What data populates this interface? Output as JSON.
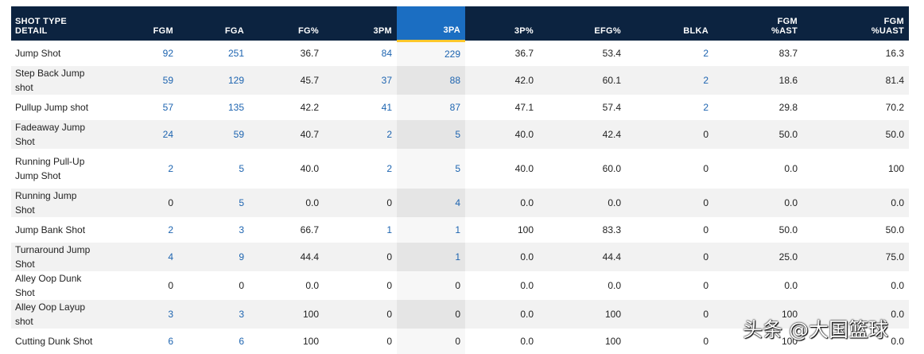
{
  "table": {
    "headers": [
      {
        "label": "SHOT TYPE DETAIL",
        "line2": ""
      },
      {
        "label": "FGM",
        "line2": ""
      },
      {
        "label": "FGA",
        "line2": ""
      },
      {
        "label": "FG%",
        "line2": ""
      },
      {
        "label": "3PM",
        "line2": ""
      },
      {
        "label": "3PA",
        "line2": ""
      },
      {
        "label": "3P%",
        "line2": ""
      },
      {
        "label": "EFG%",
        "line2": ""
      },
      {
        "label": "BLKA",
        "line2": ""
      },
      {
        "label": "FGM",
        "line2": "%AST"
      },
      {
        "label": "FGM",
        "line2": "%UAST"
      }
    ],
    "sorted_column": "3PA",
    "rows": [
      {
        "type": "Jump Shot",
        "fgm": "92",
        "fga": "251",
        "fg_pct": "36.7",
        "tpm": "84",
        "tpa": "229",
        "tp_pct": "36.7",
        "efg_pct": "53.4",
        "blka": "2",
        "fgm_ast": "83.7",
        "fgm_uast": "16.3"
      },
      {
        "type": "Step Back Jump shot",
        "fgm": "59",
        "fga": "129",
        "fg_pct": "45.7",
        "tpm": "37",
        "tpa": "88",
        "tp_pct": "42.0",
        "efg_pct": "60.1",
        "blka": "2",
        "fgm_ast": "18.6",
        "fgm_uast": "81.4"
      },
      {
        "type": "Pullup Jump shot",
        "fgm": "57",
        "fga": "135",
        "fg_pct": "42.2",
        "tpm": "41",
        "tpa": "87",
        "tp_pct": "47.1",
        "efg_pct": "57.4",
        "blka": "2",
        "fgm_ast": "29.8",
        "fgm_uast": "70.2"
      },
      {
        "type": "Fadeaway Jump Shot",
        "fgm": "24",
        "fga": "59",
        "fg_pct": "40.7",
        "tpm": "2",
        "tpa": "5",
        "tp_pct": "40.0",
        "efg_pct": "42.4",
        "blka": "0",
        "fgm_ast": "50.0",
        "fgm_uast": "50.0"
      },
      {
        "type": "Running Pull-Up Jump Shot",
        "fgm": "2",
        "fga": "5",
        "fg_pct": "40.0",
        "tpm": "2",
        "tpa": "5",
        "tp_pct": "40.0",
        "efg_pct": "60.0",
        "blka": "0",
        "fgm_ast": "0.0",
        "fgm_uast": "100"
      },
      {
        "type": "Running Jump Shot",
        "fgm": "0",
        "fga": "5",
        "fg_pct": "0.0",
        "tpm": "0",
        "tpa": "4",
        "tp_pct": "0.0",
        "efg_pct": "0.0",
        "blka": "0",
        "fgm_ast": "0.0",
        "fgm_uast": "0.0"
      },
      {
        "type": "Jump Bank Shot",
        "fgm": "2",
        "fga": "3",
        "fg_pct": "66.7",
        "tpm": "1",
        "tpa": "1",
        "tp_pct": "100",
        "efg_pct": "83.3",
        "blka": "0",
        "fgm_ast": "50.0",
        "fgm_uast": "50.0"
      },
      {
        "type": "Turnaround Jump Shot",
        "fgm": "4",
        "fga": "9",
        "fg_pct": "44.4",
        "tpm": "0",
        "tpa": "1",
        "tp_pct": "0.0",
        "efg_pct": "44.4",
        "blka": "0",
        "fgm_ast": "25.0",
        "fgm_uast": "75.0"
      },
      {
        "type": "Alley Oop Dunk Shot",
        "fgm": "0",
        "fga": "0",
        "fg_pct": "0.0",
        "tpm": "0",
        "tpa": "0",
        "tp_pct": "0.0",
        "efg_pct": "0.0",
        "blka": "0",
        "fgm_ast": "0.0",
        "fgm_uast": "0.0"
      },
      {
        "type": "Alley Oop Layup shot",
        "fgm": "3",
        "fga": "3",
        "fg_pct": "100",
        "tpm": "0",
        "tpa": "0",
        "tp_pct": "0.0",
        "efg_pct": "100",
        "blka": "0",
        "fgm_ast": "100",
        "fgm_uast": "0.0"
      },
      {
        "type": "Cutting Dunk Shot",
        "fgm": "6",
        "fga": "6",
        "fg_pct": "100",
        "tpm": "0",
        "tpa": "0",
        "tp_pct": "0.0",
        "efg_pct": "100",
        "blka": "0",
        "fgm_ast": "100",
        "fgm_uast": "0.0"
      }
    ]
  },
  "watermark": "头条 @大国篮球",
  "colors": {
    "header_bg": "#0c2340",
    "sorted_header_bg": "#1b6ec2",
    "sorted_underline": "#ffc72c",
    "link": "#1d64b0"
  }
}
